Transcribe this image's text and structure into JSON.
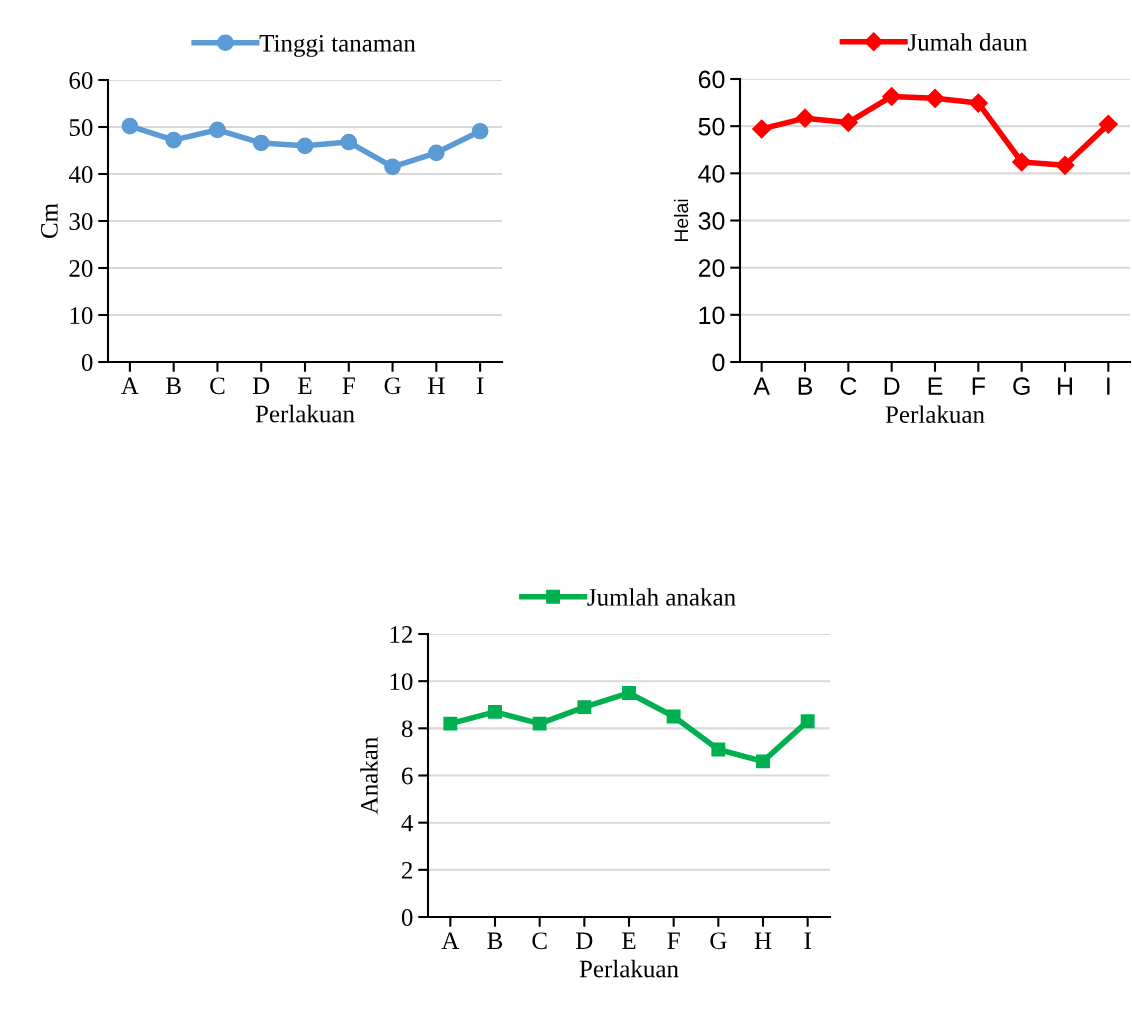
{
  "chart_data": [
    {
      "type": "line",
      "xlabel": "Perlakuan",
      "ylabel": "Cm",
      "categories": [
        "A",
        "B",
        "C",
        "D",
        "E",
        "F",
        "G",
        "H",
        "I"
      ],
      "ylim": [
        0,
        60
      ],
      "yticks": [
        0,
        10,
        20,
        30,
        40,
        50,
        60
      ],
      "grid": "y",
      "legend": "top",
      "marker": "circle",
      "line_style": "solid",
      "series": [
        {
          "name": "Tinggi tanaman",
          "color": "#5b9bd5",
          "values": [
            50.2,
            47.2,
            49.4,
            46.6,
            46.0,
            46.8,
            41.5,
            44.5,
            49.1
          ]
        }
      ]
    },
    {
      "type": "line",
      "xlabel": "Perlakuan",
      "ylabel": "Helai",
      "categories": [
        "A",
        "B",
        "C",
        "D",
        "E",
        "F",
        "G",
        "H",
        "I"
      ],
      "ylim": [
        0,
        60
      ],
      "yticks": [
        0,
        10,
        20,
        30,
        40,
        50,
        60
      ],
      "grid": "y",
      "legend": "top",
      "marker": "diamond",
      "line_style": "solid",
      "series": [
        {
          "name": "Jumah daun",
          "color": "#ff0000",
          "values": [
            49.4,
            51.7,
            50.8,
            56.3,
            55.9,
            54.9,
            42.4,
            41.7,
            50.4
          ]
        }
      ]
    },
    {
      "type": "line",
      "xlabel": "Perlakuan",
      "ylabel": "Anakan",
      "categories": [
        "A",
        "B",
        "C",
        "D",
        "E",
        "F",
        "G",
        "H",
        "I"
      ],
      "ylim": [
        0,
        12
      ],
      "yticks": [
        0,
        2,
        4,
        6,
        8,
        10,
        12
      ],
      "grid": "y",
      "legend": "top",
      "marker": "square",
      "line_style": "solid",
      "series": [
        {
          "name": "Jumlah anakan",
          "color": "#00b050",
          "values": [
            8.2,
            8.7,
            8.2,
            8.9,
            9.5,
            8.5,
            7.1,
            6.6,
            8.3
          ]
        }
      ]
    }
  ]
}
